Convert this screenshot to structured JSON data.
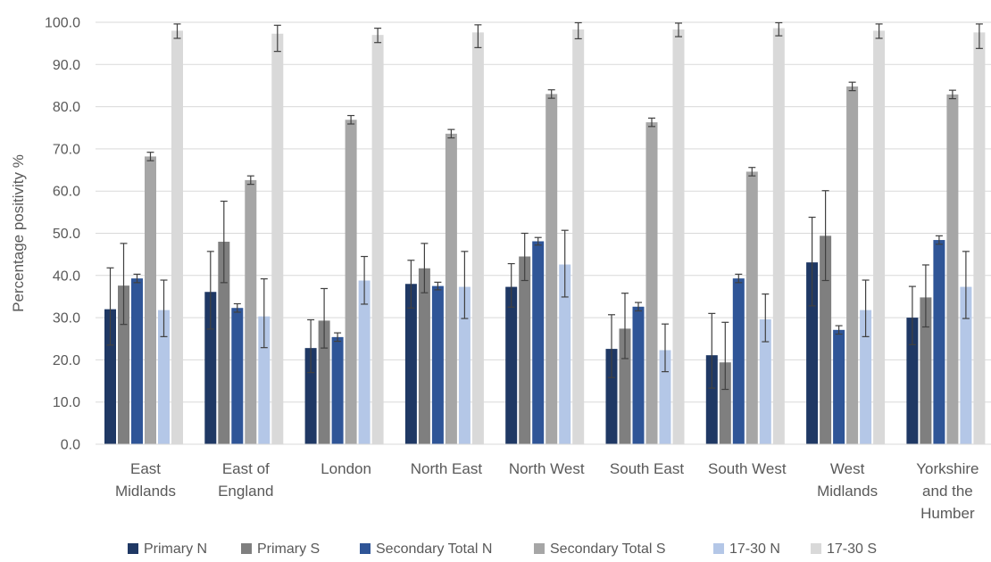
{
  "chart_data": {
    "type": "bar",
    "ylabel": "Percentage positivity %",
    "xlabel": "",
    "ylim": [
      0,
      100
    ],
    "yticks": [
      "0.0",
      "10.0",
      "20.0",
      "30.0",
      "40.0",
      "50.0",
      "60.0",
      "70.0",
      "80.0",
      "90.0",
      "100.0"
    ],
    "ytick_values": [
      0,
      10,
      20,
      30,
      40,
      50,
      60,
      70,
      80,
      90,
      100
    ],
    "grid": true,
    "legend_position": "bottom",
    "categories": [
      [
        "East",
        "Midlands"
      ],
      [
        "East of",
        "England"
      ],
      [
        "London"
      ],
      [
        "North East"
      ],
      [
        "North West"
      ],
      [
        "South East"
      ],
      [
        "South West"
      ],
      [
        "West",
        "Midlands"
      ],
      [
        "Yorkshire",
        "and the",
        "Humber"
      ]
    ],
    "series": [
      {
        "name": "Primary N",
        "color": "#1f3864",
        "values": [
          32.0,
          36.1,
          22.8,
          38.0,
          37.3,
          22.6,
          21.1,
          43.1,
          30.0
        ],
        "err_low": [
          23.5,
          27.3,
          17.0,
          32.3,
          32.5,
          15.8,
          13.3,
          32.8,
          23.6
        ],
        "err_high": [
          41.8,
          45.7,
          29.5,
          43.6,
          42.8,
          30.7,
          31.0,
          53.8,
          37.4
        ]
      },
      {
        "name": "Primary S",
        "color": "#7f7f7f",
        "values": [
          37.6,
          48.0,
          29.3,
          41.7,
          44.5,
          27.4,
          19.4,
          49.4,
          34.8
        ],
        "err_low": [
          28.4,
          38.3,
          22.8,
          35.9,
          38.8,
          20.3,
          13.0,
          38.8,
          27.8
        ],
        "err_high": [
          47.6,
          57.6,
          36.9,
          47.6,
          50.0,
          35.8,
          28.9,
          60.1,
          42.5
        ]
      },
      {
        "name": "Secondary Total N",
        "color": "#2f5597",
        "values": [
          39.3,
          32.3,
          25.4,
          37.5,
          48.1,
          32.6,
          39.3,
          27.1,
          48.4
        ],
        "err_low": [
          38.3,
          31.3,
          24.4,
          36.6,
          47.2,
          31.6,
          38.3,
          26.1,
          47.4
        ],
        "err_high": [
          40.3,
          33.3,
          26.4,
          38.4,
          49.0,
          33.6,
          40.3,
          28.1,
          49.4
        ]
      },
      {
        "name": "Secondary Total S",
        "color": "#a6a6a6",
        "values": [
          68.2,
          62.6,
          76.9,
          73.6,
          83.0,
          76.3,
          64.6,
          84.8,
          82.9
        ],
        "err_low": [
          67.2,
          61.6,
          75.9,
          72.6,
          82.0,
          75.3,
          63.6,
          83.8,
          81.9
        ],
        "err_high": [
          69.2,
          63.6,
          77.9,
          74.6,
          84.0,
          77.3,
          65.6,
          85.8,
          83.9
        ]
      },
      {
        "name": "17-30 N",
        "color": "#b4c7e7",
        "values": [
          31.8,
          30.3,
          38.8,
          37.3,
          42.6,
          22.3,
          29.6,
          31.8,
          37.3
        ],
        "err_low": [
          25.5,
          22.9,
          33.2,
          29.8,
          34.9,
          17.2,
          24.3,
          25.5,
          29.8
        ],
        "err_high": [
          38.9,
          39.2,
          44.5,
          45.7,
          50.7,
          28.5,
          35.6,
          38.9,
          45.7
        ]
      },
      {
        "name": "17-30 S",
        "color": "#d9d9d9",
        "values": [
          98.0,
          97.3,
          97.0,
          97.6,
          98.3,
          98.3,
          98.6,
          98.0,
          97.6
        ],
        "err_low": [
          96.2,
          93.1,
          95.2,
          94.0,
          96.1,
          96.6,
          96.8,
          96.2,
          93.8
        ],
        "err_high": [
          99.6,
          99.3,
          98.6,
          99.4,
          99.9,
          99.8,
          99.9,
          99.6,
          99.6
        ]
      }
    ]
  }
}
